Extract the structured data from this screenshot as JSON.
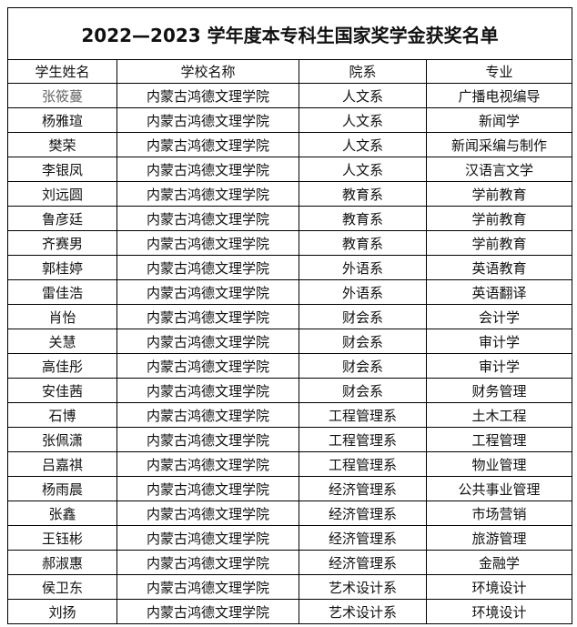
{
  "title": "2022—2023 学年度本专科生国家奖学金获奖名单",
  "headers": [
    "学生姓名",
    "学校名称",
    "院系",
    "专业"
  ],
  "rows": [
    [
      "张筱蔓",
      "内蒙古鸿德文理学院",
      "人文系",
      "广播电视编导"
    ],
    [
      "杨雅瑄",
      "内蒙古鸿德文理学院",
      "人文系",
      "新闻学"
    ],
    [
      "樊荣",
      "内蒙古鸿德文理学院",
      "人文系",
      "新闻采编与制作"
    ],
    [
      "李银凤",
      "内蒙古鸿德文理学院",
      "人文系",
      "汉语言文学"
    ],
    [
      "刘远圆",
      "内蒙古鸿德文理学院",
      "教育系",
      "学前教育"
    ],
    [
      "鲁彦廷",
      "内蒙古鸿德文理学院",
      "教育系",
      "学前教育"
    ],
    [
      "齐赛男",
      "内蒙古鸿德文理学院",
      "教育系",
      "学前教育"
    ],
    [
      "郭桂婷",
      "内蒙古鸿德文理学院",
      "外语系",
      "英语教育"
    ],
    [
      "雷佳浩",
      "内蒙古鸿德文理学院",
      "外语系",
      "英语翻译"
    ],
    [
      "肖怡",
      "内蒙古鸿德文理学院",
      "财会系",
      "会计学"
    ],
    [
      "关慧",
      "内蒙古鸿德文理学院",
      "财会系",
      "审计学"
    ],
    [
      "高佳彤",
      "内蒙古鸿德文理学院",
      "财会系",
      "审计学"
    ],
    [
      "安佳茜",
      "内蒙古鸿德文理学院",
      "财会系",
      "财务管理"
    ],
    [
      "石博",
      "内蒙古鸿德文理学院",
      "工程管理系",
      "土木工程"
    ],
    [
      "张佩潇",
      "内蒙古鸿德文理学院",
      "工程管理系",
      "工程管理"
    ],
    [
      "吕嘉祺",
      "内蒙古鸿德文理学院",
      "工程管理系",
      "物业管理"
    ],
    [
      "杨雨晨",
      "内蒙古鸿德文理学院",
      "经济管理系",
      "公共事业管理"
    ],
    [
      "张鑫",
      "内蒙古鸿德文理学院",
      "经济管理系",
      "市场营销"
    ],
    [
      "王钰彬",
      "内蒙古鸿德文理学院",
      "经济管理系",
      "旅游管理"
    ],
    [
      "郝淑惠",
      "内蒙古鸿德文理学院",
      "经济管理系",
      "金融学"
    ],
    [
      "侯卫东",
      "内蒙古鸿德文理学院",
      "艺术设计系",
      "环境设计"
    ],
    [
      "刘扬",
      "内蒙古鸿德文理学院",
      "艺术设计系",
      "环境设计"
    ]
  ]
}
